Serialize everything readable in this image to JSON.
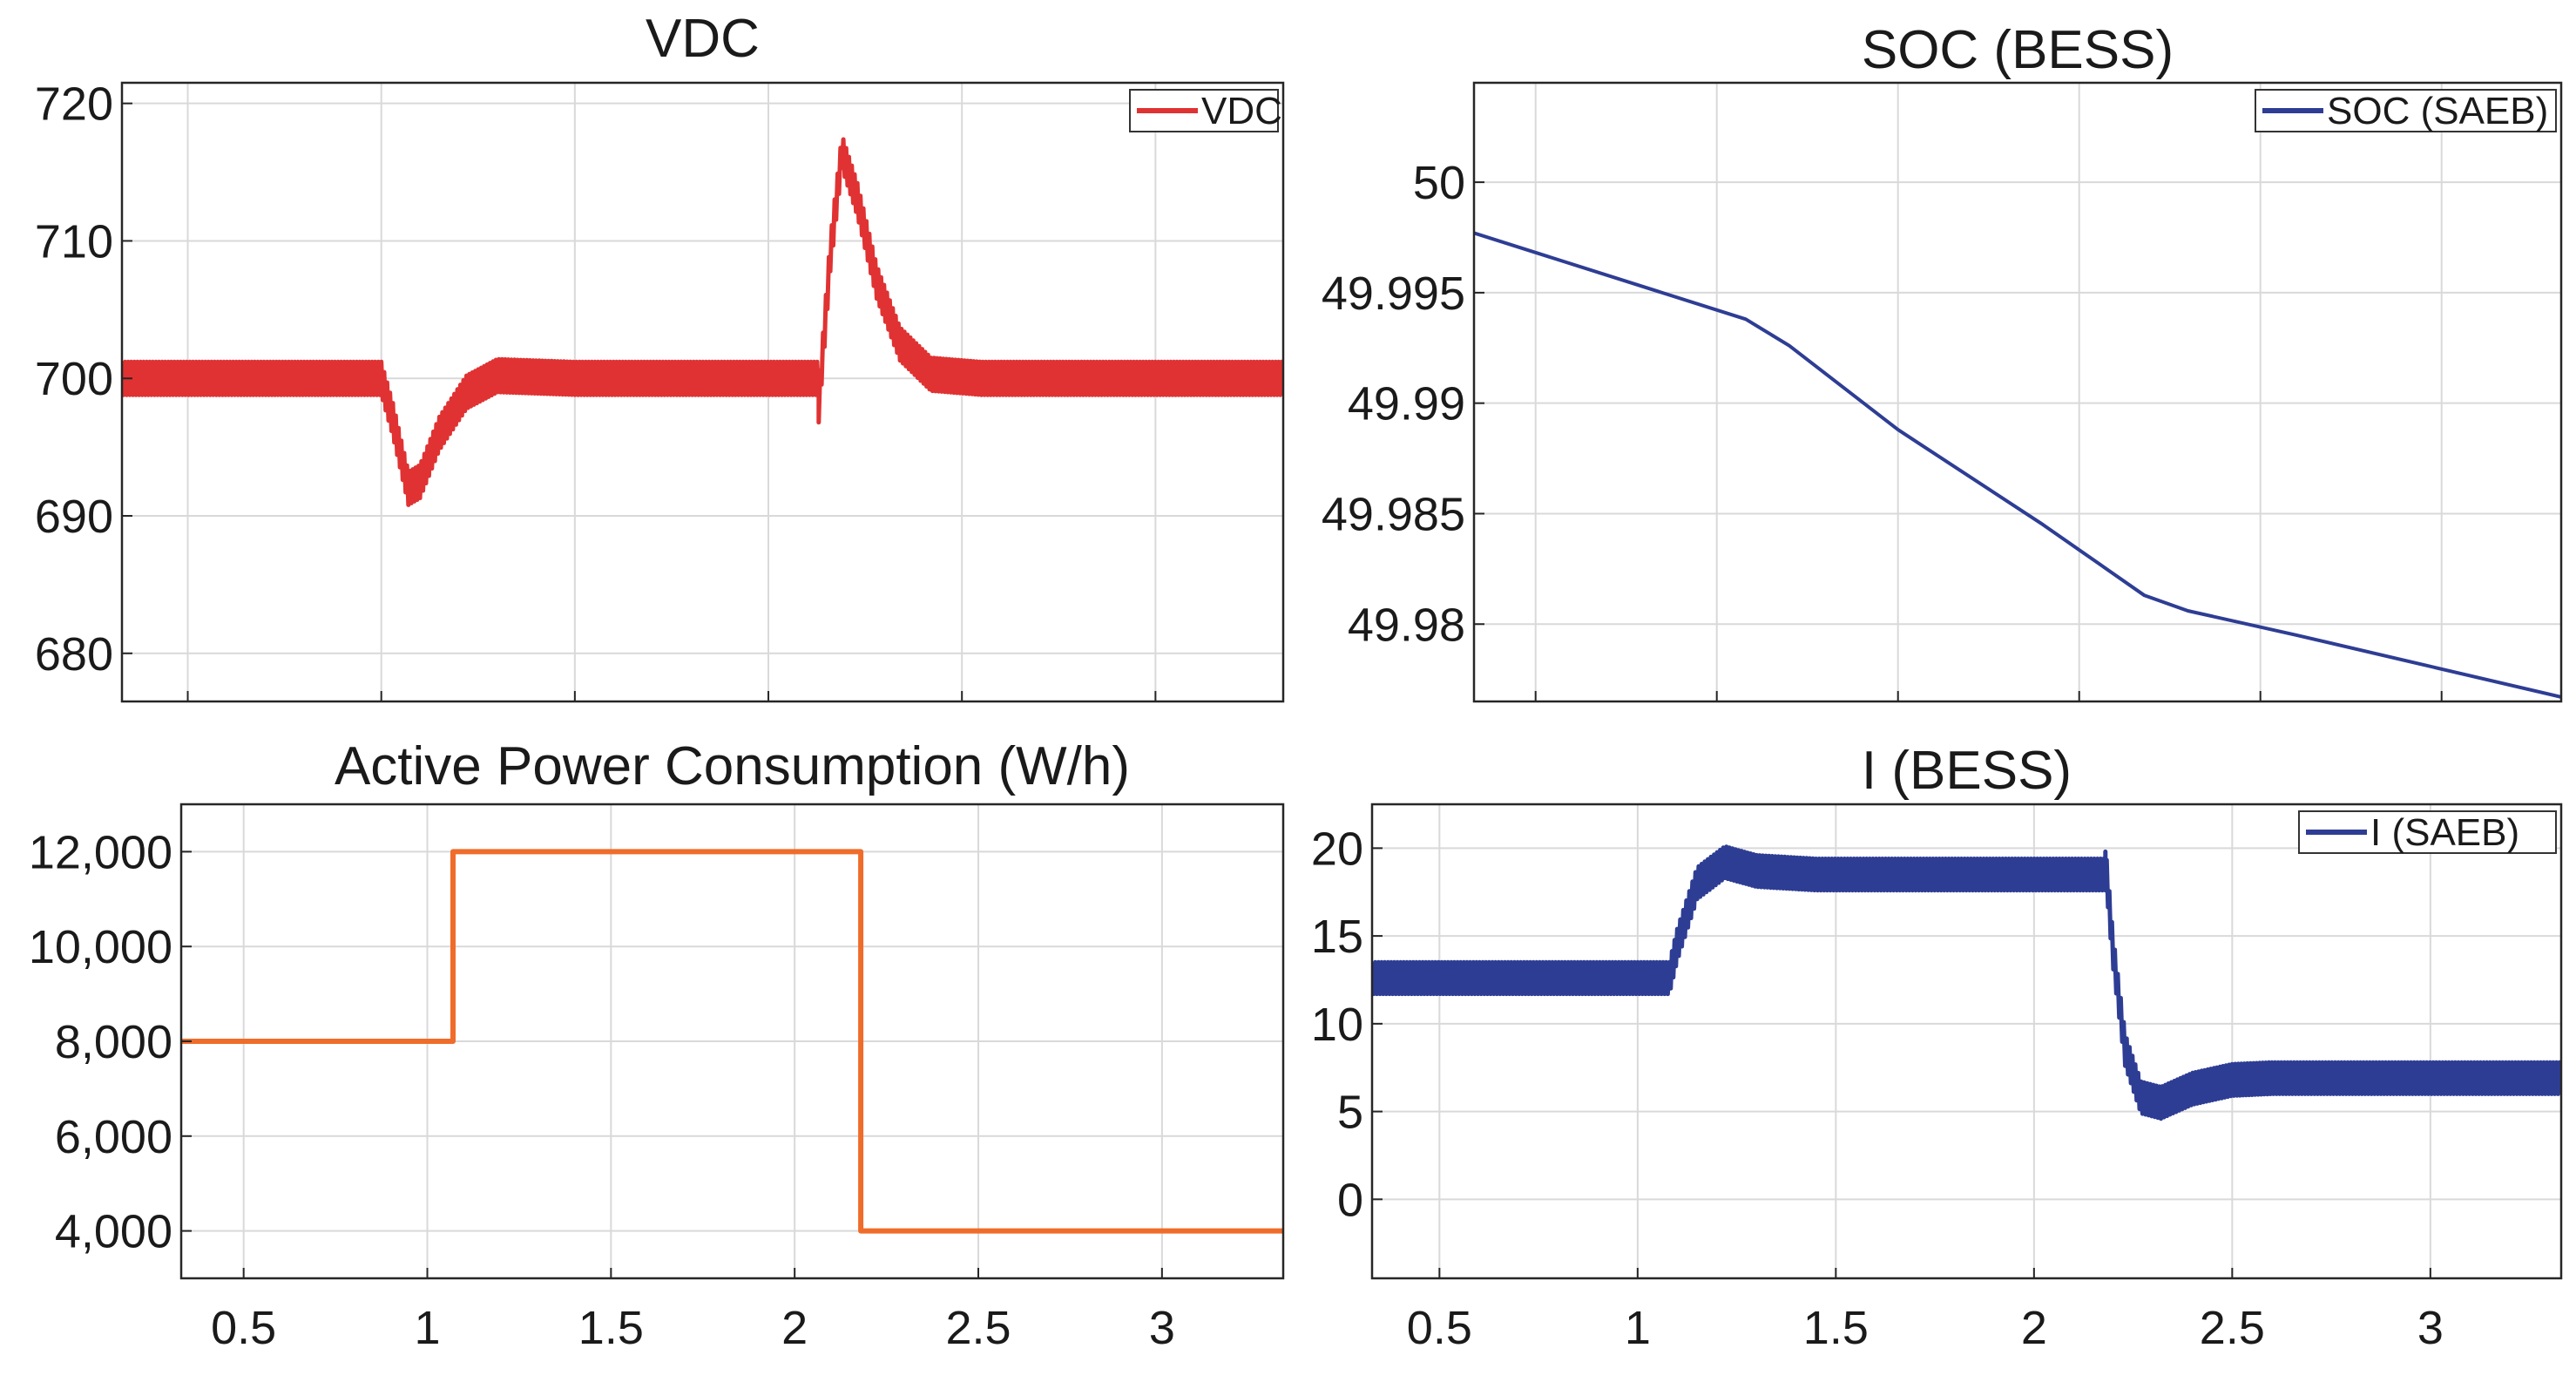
{
  "colors": {
    "vdc": "#e03232",
    "soc": "#2e3d94",
    "power": "#ef6c2a",
    "current": "#2e3d94",
    "grid": "#d9d9d9",
    "axis": "#262626"
  },
  "chart_data": [
    {
      "id": "vdc",
      "type": "line",
      "title": "VDC",
      "xlabel": "",
      "ylabel": "",
      "xlim": [
        0.33,
        3.33
      ],
      "ylim": [
        676.5,
        721.5
      ],
      "xticks": [
        0.5,
        1,
        1.5,
        2,
        2.5,
        3
      ],
      "yticks": [
        680,
        690,
        700,
        710,
        720
      ],
      "ytick_labels": [
        "680",
        "690",
        "700",
        "710",
        "720"
      ],
      "show_xtick_labels": false,
      "grid": true,
      "legend": {
        "position": "top-right",
        "entries": [
          "VDC"
        ]
      },
      "series": [
        {
          "name": "VDC",
          "ripple": 1.2,
          "points": [
            [
              0.33,
              700
            ],
            [
              1.0,
              700
            ],
            [
              1.03,
              697
            ],
            [
              1.07,
              692
            ],
            [
              1.1,
              692.5
            ],
            [
              1.15,
              696
            ],
            [
              1.22,
              699
            ],
            [
              1.3,
              700.2
            ],
            [
              1.5,
              700
            ],
            [
              2.13,
              700
            ],
            [
              2.13,
              698
            ],
            [
              2.16,
              709
            ],
            [
              2.19,
              716.5
            ],
            [
              2.23,
              713
            ],
            [
              2.28,
              707
            ],
            [
              2.34,
              702.5
            ],
            [
              2.42,
              700.3
            ],
            [
              2.55,
              700
            ],
            [
              3.33,
              700
            ]
          ]
        }
      ]
    },
    {
      "id": "soc",
      "type": "line",
      "title": "SOC (BESS)",
      "xlabel": "",
      "ylabel": "",
      "xlim": [
        0.33,
        3.33
      ],
      "ylim": [
        49.9765,
        50.0045
      ],
      "xticks": [
        0.5,
        1,
        1.5,
        2,
        2.5,
        3
      ],
      "yticks": [
        49.98,
        49.985,
        49.99,
        49.995,
        50
      ],
      "ytick_labels": [
        "49.98",
        "49.985",
        "49.99",
        "49.995",
        "50"
      ],
      "show_xtick_labels": false,
      "grid": true,
      "legend": {
        "position": "top-right",
        "entries": [
          "SOC (SAEB)"
        ]
      },
      "series": [
        {
          "name": "SOC (SAEB)",
          "ripple": 0,
          "points": [
            [
              0.33,
              49.9977
            ],
            [
              1.08,
              49.9938
            ],
            [
              1.2,
              49.9926
            ],
            [
              1.5,
              49.9888
            ],
            [
              1.9,
              49.9845
            ],
            [
              2.18,
              49.9813
            ],
            [
              2.3,
              49.9806
            ],
            [
              2.6,
              49.9795
            ],
            [
              3.33,
              49.9767
            ]
          ]
        }
      ]
    },
    {
      "id": "power",
      "type": "line",
      "title": "Active Power Consumption (W/h)",
      "xlabel": "",
      "ylabel": "",
      "xlim": [
        0.33,
        3.33
      ],
      "ylim": [
        3000,
        13000
      ],
      "xticks": [
        0.5,
        1,
        1.5,
        2,
        2.5,
        3
      ],
      "xtick_labels": [
        "0.5",
        "1",
        "1.5",
        "2",
        "2.5",
        "3"
      ],
      "yticks": [
        4000,
        6000,
        8000,
        10000,
        12000
      ],
      "ytick_labels": [
        "4,000",
        "6,000",
        "8,000",
        "10,000",
        "12,000"
      ],
      "show_xtick_labels": true,
      "grid": true,
      "legend": null,
      "series": [
        {
          "name": "Active Power",
          "ripple": 0,
          "points": [
            [
              0.33,
              8000
            ],
            [
              1.07,
              8000
            ],
            [
              1.07,
              12000
            ],
            [
              2.18,
              12000
            ],
            [
              2.18,
              4000
            ],
            [
              3.33,
              4000
            ]
          ]
        }
      ]
    },
    {
      "id": "current",
      "type": "line",
      "title": "I (BESS)",
      "xlabel": "",
      "ylabel": "",
      "xlim": [
        0.33,
        3.33
      ],
      "ylim": [
        -4.5,
        22.5
      ],
      "xticks": [
        0.5,
        1,
        1.5,
        2,
        2.5,
        3
      ],
      "xtick_labels": [
        "0.5",
        "1",
        "1.5",
        "2",
        "2.5",
        "3"
      ],
      "yticks": [
        0,
        5,
        10,
        15,
        20
      ],
      "ytick_labels": [
        "0",
        "5",
        "10",
        "15",
        "20"
      ],
      "show_xtick_labels": true,
      "grid": true,
      "legend": {
        "position": "top-right",
        "entries": [
          "I (SAEB)"
        ]
      },
      "series": [
        {
          "name": "I (SAEB)",
          "ripple": 0.9,
          "points": [
            [
              0.33,
              12.6
            ],
            [
              1.08,
              12.6
            ],
            [
              1.1,
              14.5
            ],
            [
              1.15,
              18
            ],
            [
              1.22,
              19.2
            ],
            [
              1.3,
              18.7
            ],
            [
              1.45,
              18.5
            ],
            [
              2.18,
              18.5
            ],
            [
              2.18,
              19.3
            ],
            [
              2.2,
              14
            ],
            [
              2.23,
              8.5
            ],
            [
              2.27,
              5.8
            ],
            [
              2.32,
              5.5
            ],
            [
              2.4,
              6.3
            ],
            [
              2.5,
              6.8
            ],
            [
              2.6,
              6.9
            ],
            [
              3.33,
              6.9
            ]
          ]
        }
      ]
    }
  ]
}
